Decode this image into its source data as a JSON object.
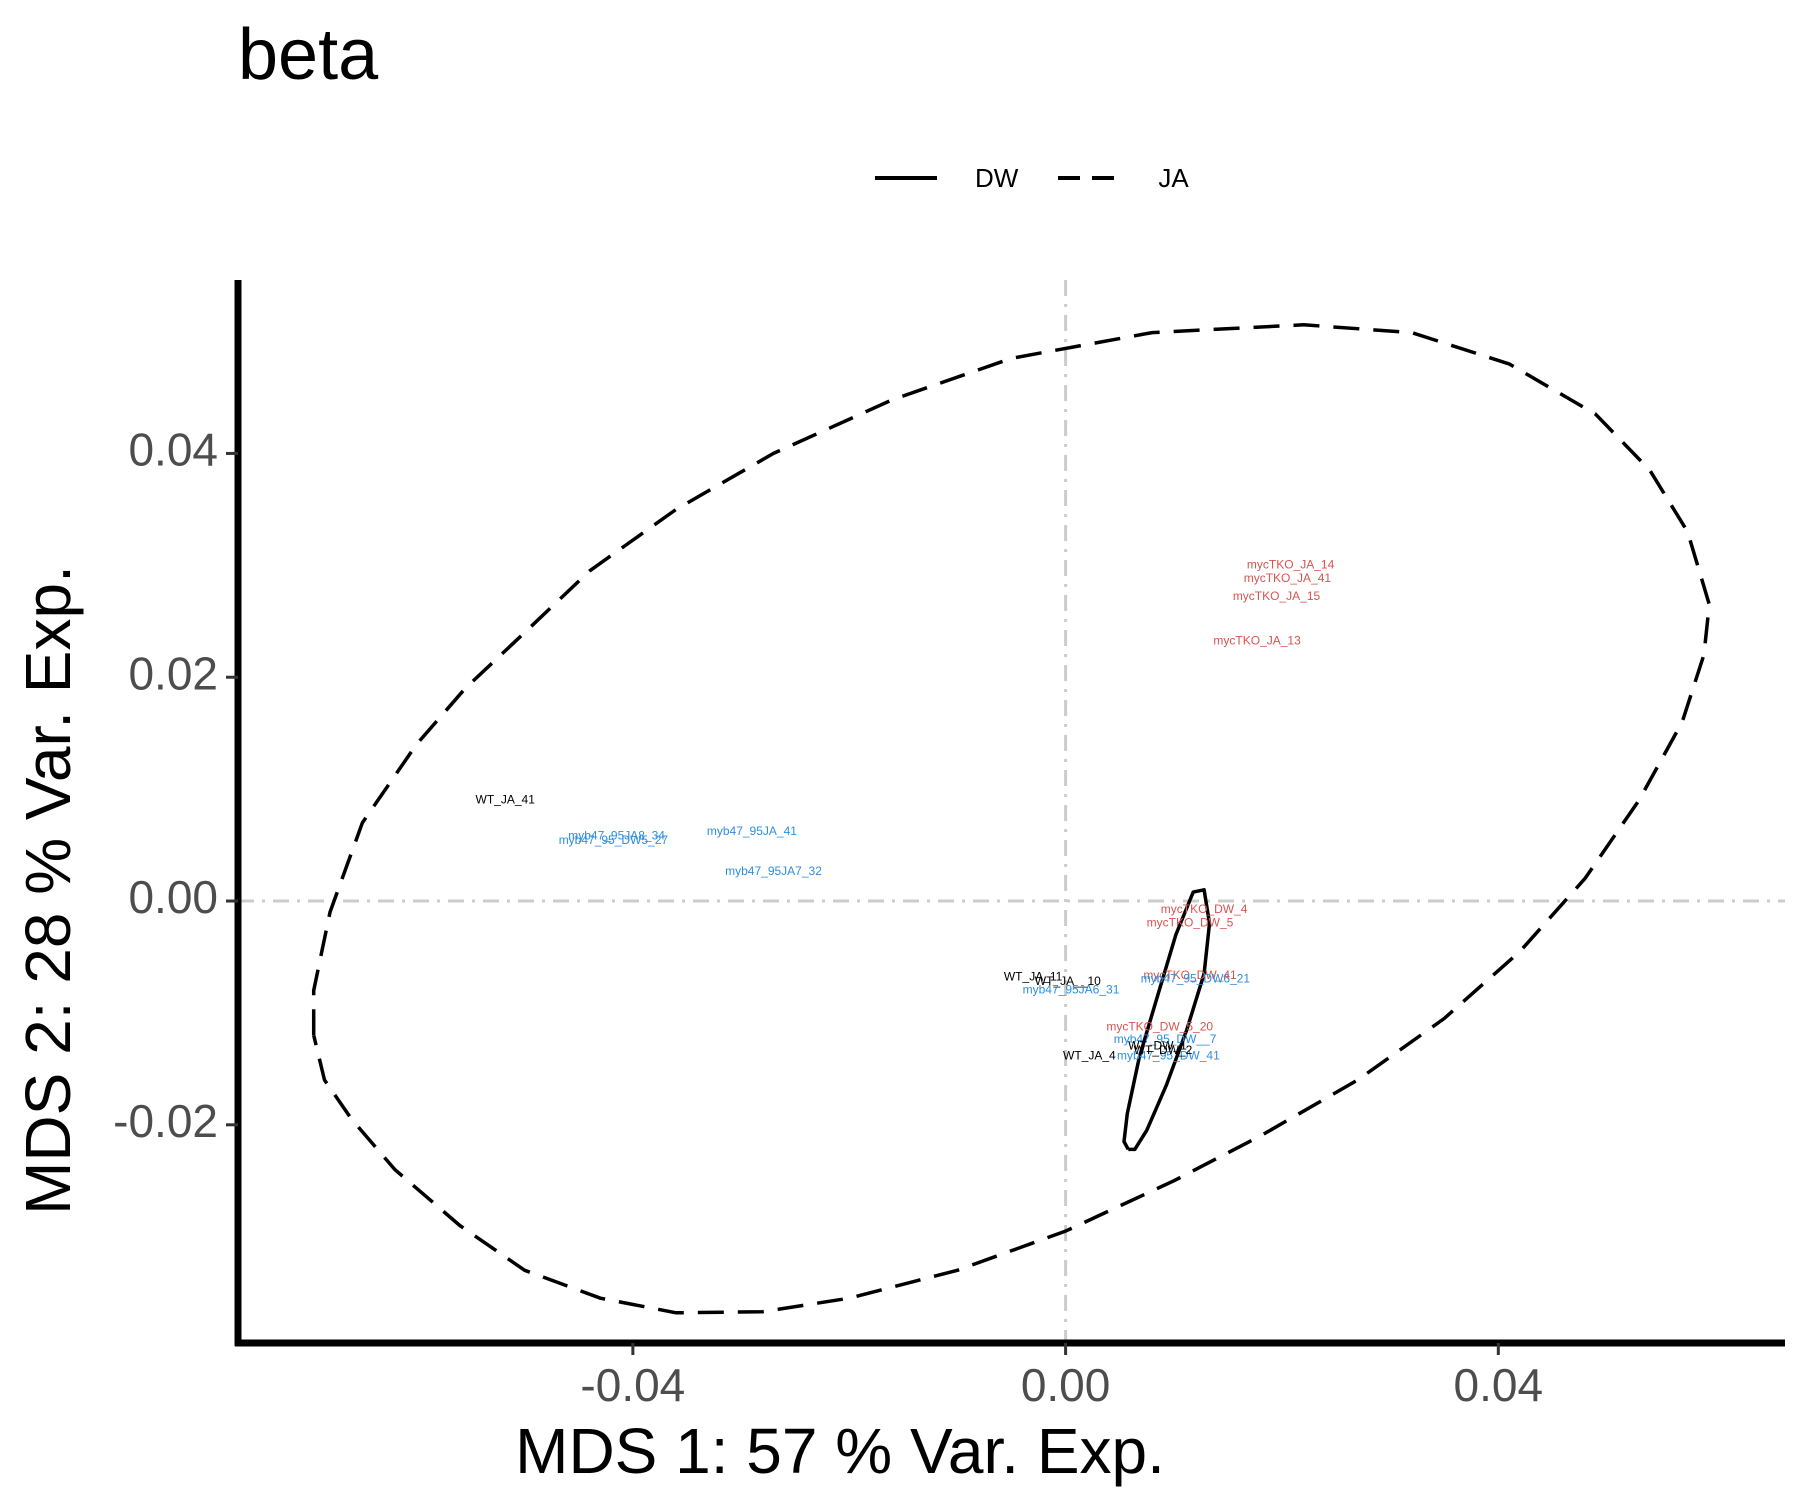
{
  "chart_data": {
    "type": "scatter",
    "title": "beta",
    "xlabel": "MDS 1: 57 % Var. Exp.",
    "ylabel": "MDS 2: 28 % Var. Exp.",
    "xlim": [
      -0.0765,
      0.0665
    ],
    "ylim": [
      -0.0395,
      0.0555
    ],
    "x_ticks": [
      -0.04,
      0.0,
      0.04
    ],
    "x_tick_labels": [
      "-0.04",
      "0.00",
      "0.04"
    ],
    "y_ticks": [
      -0.02,
      0.0,
      0.02,
      0.04
    ],
    "y_tick_labels": [
      "-0.02",
      "0.00",
      "0.02",
      "0.04"
    ],
    "reference_lines": {
      "x": 0.0,
      "y": 0.0
    },
    "legend": {
      "position": "top",
      "entries": [
        {
          "label": "DW",
          "linetype": "solid"
        },
        {
          "label": "JA",
          "linetype": "dashed"
        }
      ]
    },
    "colors": {
      "WT": "#000000",
      "myb47": "#2e8ee0",
      "mycTKO": "#d9534f",
      "reference": "#cccccc"
    },
    "ellipses": [
      {
        "group": "JA",
        "linetype": "dashed",
        "path": [
          [
            -0.0695,
            -0.012
          ],
          [
            -0.0695,
            -0.008
          ],
          [
            -0.068,
            -0.001
          ],
          [
            -0.065,
            0.007
          ],
          [
            -0.06,
            0.014
          ],
          [
            -0.0555,
            0.019
          ],
          [
            -0.05,
            0.024
          ],
          [
            -0.044,
            0.0295
          ],
          [
            -0.036,
            0.035
          ],
          [
            -0.027,
            0.04
          ],
          [
            -0.016,
            0.0448
          ],
          [
            -0.005,
            0.0485
          ],
          [
            0.008,
            0.0508
          ],
          [
            0.022,
            0.0515
          ],
          [
            0.032,
            0.0508
          ],
          [
            0.041,
            0.048
          ],
          [
            0.049,
            0.0435
          ],
          [
            0.054,
            0.0385
          ],
          [
            0.0575,
            0.033
          ],
          [
            0.0595,
            0.0265
          ],
          [
            0.059,
            0.022
          ],
          [
            0.057,
            0.016
          ],
          [
            0.053,
            0.009
          ],
          [
            0.048,
            0.002
          ],
          [
            0.042,
            -0.0045
          ],
          [
            0.035,
            -0.0105
          ],
          [
            0.027,
            -0.016
          ],
          [
            0.018,
            -0.021
          ],
          [
            0.01,
            -0.025
          ],
          [
            0.0,
            -0.0295
          ],
          [
            -0.01,
            -0.033
          ],
          [
            -0.02,
            -0.0355
          ],
          [
            -0.028,
            -0.0367
          ],
          [
            -0.036,
            -0.0368
          ],
          [
            -0.043,
            -0.0355
          ],
          [
            -0.05,
            -0.033
          ],
          [
            -0.056,
            -0.029
          ],
          [
            -0.062,
            -0.024
          ],
          [
            -0.066,
            -0.0195
          ],
          [
            -0.0685,
            -0.016
          ],
          [
            -0.0695,
            -0.012
          ]
        ]
      },
      {
        "group": "DW",
        "linetype": "solid",
        "path": [
          [
            0.0058,
            -0.0222
          ],
          [
            0.0054,
            -0.0215
          ],
          [
            0.0057,
            -0.019
          ],
          [
            0.0068,
            -0.014
          ],
          [
            0.0085,
            -0.0085
          ],
          [
            0.0102,
            -0.003
          ],
          [
            0.0118,
            0.0008
          ],
          [
            0.0128,
            0.001
          ],
          [
            0.0133,
            -0.002
          ],
          [
            0.0128,
            -0.0065
          ],
          [
            0.0112,
            -0.0115
          ],
          [
            0.0093,
            -0.0165
          ],
          [
            0.0075,
            -0.0205
          ],
          [
            0.0064,
            -0.0222
          ],
          [
            0.0058,
            -0.0222
          ]
        ]
      }
    ],
    "points": [
      {
        "label": "mycTKO_JA_14",
        "x": 0.0208,
        "y": 0.03,
        "group": "mycTKO"
      },
      {
        "label": "mycTKO_JA_41",
        "x": 0.0205,
        "y": 0.0288,
        "group": "mycTKO"
      },
      {
        "label": "mycTKO_JA_15",
        "x": 0.0195,
        "y": 0.0272,
        "group": "mycTKO"
      },
      {
        "label": "mycTKO_JA_13",
        "x": 0.0177,
        "y": 0.0232,
        "group": "mycTKO"
      },
      {
        "label": "WT_JA_41",
        "x": -0.0518,
        "y": 0.009,
        "group": "WT"
      },
      {
        "label": "myb47_95JA8_34",
        "x": -0.0415,
        "y": 0.0058,
        "group": "myb47"
      },
      {
        "label": "myb47_95_DW5_27",
        "x": -0.0418,
        "y": 0.0054,
        "group": "myb47"
      },
      {
        "label": "myb47_95JA_41",
        "x": -0.029,
        "y": 0.0062,
        "group": "myb47"
      },
      {
        "label": "myb47_95JA7_32",
        "x": -0.027,
        "y": 0.0026,
        "group": "myb47"
      },
      {
        "label": "mycTKO_DW_4",
        "x": 0.0128,
        "y": -0.0008,
        "group": "mycTKO"
      },
      {
        "label": "mycTKO_DW_5",
        "x": 0.0115,
        "y": -0.002,
        "group": "mycTKO"
      },
      {
        "label": "WT_JA_11",
        "x": -0.003,
        "y": -0.0068,
        "group": "WT"
      },
      {
        "label": "WT_JA__10",
        "x": 0.0002,
        "y": -0.0072,
        "group": "WT"
      },
      {
        "label": "myb47_95JA6_31",
        "x": 0.0005,
        "y": -0.008,
        "group": "myb47"
      },
      {
        "label": "mycTKO_DW_41",
        "x": 0.0115,
        "y": -0.0067,
        "group": "mycTKO"
      },
      {
        "label": "myb47_95_DW6_21",
        "x": 0.012,
        "y": -0.007,
        "group": "myb47"
      },
      {
        "label": "mycTKO_DW_5_20",
        "x": 0.0087,
        "y": -0.0113,
        "group": "mycTKO"
      },
      {
        "label": "myb47_95_DW__7",
        "x": 0.0092,
        "y": -0.0124,
        "group": "myb47"
      },
      {
        "label": "myb47_95_DW_41",
        "x": 0.0095,
        "y": -0.0139,
        "group": "myb47"
      },
      {
        "label": "WT_DW_1",
        "x": 0.0085,
        "y": -0.013,
        "group": "WT"
      },
      {
        "label": "WT_DW_2",
        "x": 0.009,
        "y": -0.0134,
        "group": "WT"
      },
      {
        "label": "WT_JA_4",
        "x": 0.0022,
        "y": -0.0139,
        "group": "WT"
      }
    ]
  }
}
